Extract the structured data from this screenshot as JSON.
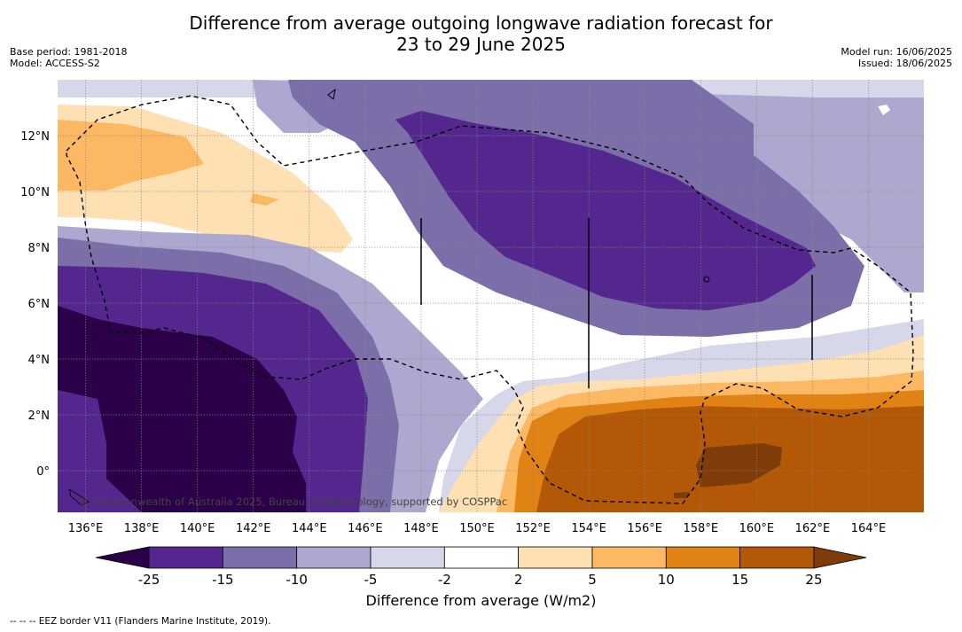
{
  "title_line1": "Difference from average outgoing longwave radiation forecast for",
  "title_line2": "23 to 29 June 2025",
  "base_period": "Base period: 1981-2018",
  "model": "Model: ACCESS-S2",
  "model_run": "Model run: 16/06/2025",
  "issued": "Issued: 18/06/2025",
  "credit": "© Commonwealth of Australia 2025, Bureau of Meteorology, supported by COSPPac",
  "footnote": "--  --  -- EEZ border V11 (Flanders Marine Institute, 2019).",
  "colorbar": {
    "label": "Difference from average (W/m2)",
    "ticks": [
      "-25",
      "-15",
      "-10",
      "-5",
      "-2",
      "2",
      "5",
      "10",
      "15",
      "25"
    ],
    "colors": [
      "#2b0049",
      "#54278f",
      "#7c6ea9",
      "#aca8d0",
      "#d7d7ea",
      "#ffffff",
      "#fee0b2",
      "#fdb863",
      "#e08214",
      "#b35806",
      "#7f3b08"
    ]
  },
  "axes": {
    "lon_ticks": [
      "136°E",
      "138°E",
      "140°E",
      "142°E",
      "144°E",
      "146°E",
      "148°E",
      "150°E",
      "152°E",
      "154°E",
      "156°E",
      "158°E",
      "160°E",
      "162°E",
      "164°E"
    ],
    "lat_ticks": [
      "12°N",
      "10°N",
      "8°N",
      "6°N",
      "4°N",
      "2°N",
      "0°"
    ]
  }
}
